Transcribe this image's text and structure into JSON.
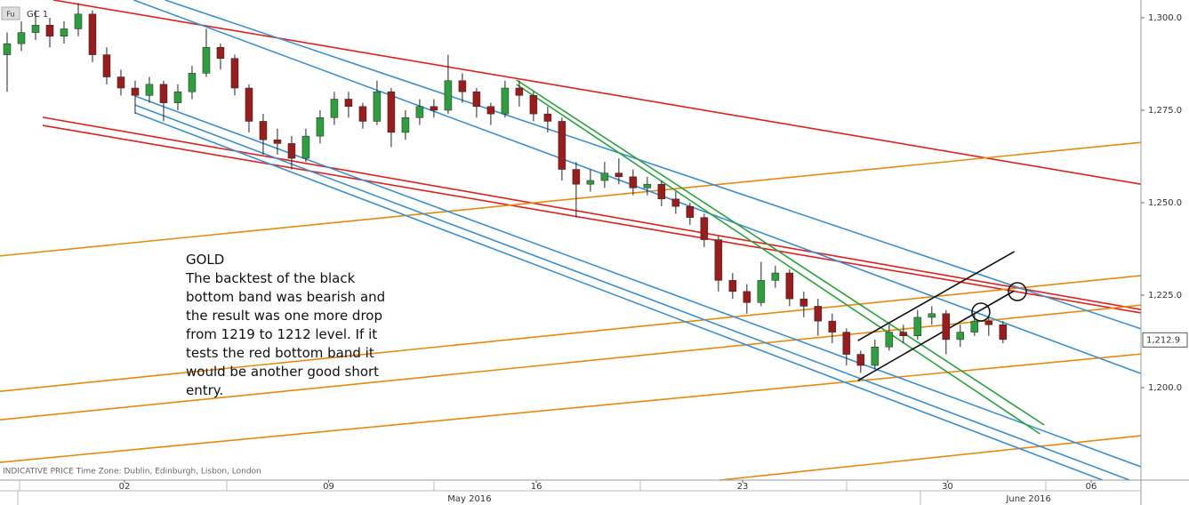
{
  "chart_data": {
    "type": "candlestick",
    "symbol": "GC 1",
    "symbol_icon": "Fu",
    "footer": "INDICATIVE PRICE   Time Zone: Dublin, Edinburgh, Lisbon, London",
    "months": [
      {
        "value": 33,
        "label": "May 2016"
      },
      {
        "value": 72.3,
        "label": "June 2016"
      }
    ],
    "last_price": {
      "value": 1212.9,
      "label": "1,212.9"
    },
    "up_color": "#2e9e3e",
    "down_color": "#9b1c1c",
    "ohlc": [
      [
        1290,
        1296,
        1280,
        1293
      ],
      [
        1293,
        1299,
        1291,
        1296
      ],
      [
        1296,
        1302,
        1294,
        1298
      ],
      [
        1298,
        1300,
        1292,
        1295
      ],
      [
        1295,
        1299,
        1293,
        1297
      ],
      [
        1297,
        1304,
        1295,
        1301
      ],
      [
        1301,
        1302,
        1288,
        1290
      ],
      [
        1290,
        1292,
        1282,
        1284
      ],
      [
        1284,
        1286,
        1279,
        1281
      ],
      [
        1281,
        1283,
        1274,
        1279
      ],
      [
        1279,
        1284,
        1277,
        1282
      ],
      [
        1282,
        1283,
        1272,
        1277
      ],
      [
        1277,
        1282,
        1275,
        1280
      ],
      [
        1280,
        1287,
        1278,
        1285
      ],
      [
        1285,
        1297,
        1284,
        1292
      ],
      [
        1292,
        1293,
        1286,
        1289
      ],
      [
        1289,
        1290,
        1279,
        1281
      ],
      [
        1281,
        1282,
        1269,
        1272
      ],
      [
        1272,
        1274,
        1263,
        1267
      ],
      [
        1267,
        1270,
        1263,
        1266
      ],
      [
        1266,
        1268,
        1259,
        1262
      ],
      [
        1262,
        1270,
        1261,
        1268
      ],
      [
        1268,
        1275,
        1266,
        1273
      ],
      [
        1273,
        1280,
        1271,
        1278
      ],
      [
        1278,
        1280,
        1273,
        1276
      ],
      [
        1276,
        1277,
        1270,
        1272
      ],
      [
        1272,
        1283,
        1271,
        1280
      ],
      [
        1280,
        1281,
        1265,
        1269
      ],
      [
        1269,
        1275,
        1267,
        1273
      ],
      [
        1273,
        1278,
        1271,
        1276
      ],
      [
        1276,
        1278,
        1273,
        1275
      ],
      [
        1275,
        1290,
        1274,
        1283
      ],
      [
        1283,
        1285,
        1277,
        1280
      ],
      [
        1280,
        1281,
        1273,
        1276
      ],
      [
        1276,
        1277,
        1271,
        1274
      ],
      [
        1274,
        1283,
        1273,
        1281
      ],
      [
        1281,
        1283,
        1276,
        1279
      ],
      [
        1279,
        1280,
        1272,
        1274
      ],
      [
        1274,
        1276,
        1269,
        1272
      ],
      [
        1272,
        1273,
        1256,
        1259
      ],
      [
        1259,
        1261,
        1246,
        1255
      ],
      [
        1255,
        1259,
        1253,
        1256
      ],
      [
        1256,
        1261,
        1254,
        1258
      ],
      [
        1258,
        1262,
        1255,
        1257
      ],
      [
        1257,
        1259,
        1252,
        1254
      ],
      [
        1254,
        1257,
        1252,
        1255
      ],
      [
        1255,
        1256,
        1249,
        1251
      ],
      [
        1251,
        1253,
        1247,
        1249
      ],
      [
        1249,
        1250,
        1244,
        1246
      ],
      [
        1246,
        1247,
        1238,
        1240
      ],
      [
        1240,
        1241,
        1226,
        1229
      ],
      [
        1229,
        1231,
        1224,
        1226
      ],
      [
        1226,
        1228,
        1220,
        1223
      ],
      [
        1223,
        1234,
        1222,
        1229
      ],
      [
        1229,
        1233,
        1227,
        1231
      ],
      [
        1231,
        1232,
        1222,
        1224
      ],
      [
        1224,
        1226,
        1219,
        1222
      ],
      [
        1222,
        1224,
        1214,
        1218
      ],
      [
        1218,
        1220,
        1212,
        1215
      ],
      [
        1215,
        1216,
        1206,
        1209
      ],
      [
        1209,
        1210,
        1204,
        1206
      ],
      [
        1206,
        1213,
        1205,
        1211
      ],
      [
        1211,
        1217,
        1210,
        1215
      ],
      [
        1215,
        1217,
        1212,
        1214
      ],
      [
        1214,
        1221,
        1213,
        1219
      ],
      [
        1219,
        1222,
        1217,
        1220
      ],
      [
        1220,
        1221,
        1209,
        1213
      ],
      [
        1213,
        1217,
        1211,
        1215
      ],
      [
        1215,
        1220,
        1214,
        1218
      ],
      [
        1218,
        1219,
        1214,
        1217
      ],
      [
        1217,
        1218,
        1212,
        1213
      ]
    ],
    "xlim": [
      0,
      80.2
    ],
    "ylim": [
      1175,
      1304.8
    ],
    "xticks": [
      {
        "value": 8.75,
        "label": "02"
      },
      {
        "value": 23.1,
        "label": "09"
      },
      {
        "value": 37.7,
        "label": "16"
      },
      {
        "value": 52.2,
        "label": "23"
      },
      {
        "value": 66.6,
        "label": "30"
      },
      {
        "value": 76.7,
        "label": "06"
      }
    ],
    "yticks": [
      {
        "value": 1200,
        "label": "1,200.0"
      },
      {
        "value": 1225,
        "label": "1,225.0"
      },
      {
        "value": 1250,
        "label": "1,250.0"
      },
      {
        "value": 1275,
        "label": "1,275.0"
      },
      {
        "value": 1300,
        "label": "1,300.0"
      }
    ],
    "trendlines": [
      {
        "color": "#e0201b",
        "points": [
          3.75,
          1304.8,
          80.2,
          1255.0
        ]
      },
      {
        "color": "#e0201b",
        "points": [
          3,
          1273.1,
          80.2,
          1221.1
        ]
      },
      {
        "color": "#e0201b",
        "points": [
          3,
          1270.9,
          80.2,
          1220.2
        ]
      },
      {
        "color": "#e8890c",
        "points": [
          0,
          1235.6,
          80.2,
          1266.3
        ]
      },
      {
        "color": "#e8890c",
        "points": [
          0,
          1199.0,
          80.2,
          1230.3
        ]
      },
      {
        "color": "#e8890c",
        "points": [
          0,
          1191.3,
          80.2,
          1222.3
        ]
      },
      {
        "color": "#e8890c",
        "points": [
          0,
          1179.8,
          80.2,
          1209.1
        ]
      },
      {
        "color": "#e8890c",
        "points": [
          50.6,
          1175,
          80.2,
          1187.0
        ]
      },
      {
        "color": "#3b8fd0",
        "points": [
          9.4,
          1304.8,
          80.2,
          1203.8
        ]
      },
      {
        "color": "#3b8fd0",
        "points": [
          11.6,
          1304.8,
          80.2,
          1215.9
        ]
      },
      {
        "color": "#3b8fd0",
        "points": [
          9.5,
          1278.8,
          80.2,
          1178.6
        ]
      },
      {
        "color": "#3b8fd0",
        "points": [
          9.5,
          1276.4,
          79.4,
          1175
        ]
      },
      {
        "color": "#3b8fd0",
        "points": [
          9.5,
          1274.3,
          77.5,
          1175
        ]
      },
      {
        "color": "#2aa33a",
        "points": [
          36.3,
          1283.2,
          73.4,
          1189.9
        ]
      },
      {
        "color": "#2aa33a",
        "points": [
          36.3,
          1282.0,
          73.1,
          1187.5
        ]
      },
      {
        "color": "#111111",
        "points": [
          60.3,
          1212.7,
          71.3,
          1236.8
        ]
      },
      {
        "color": "#111111",
        "points": [
          60.3,
          1201.9,
          71.3,
          1226.2
        ]
      }
    ],
    "annotation": [
      "GOLD",
      "The backtest of the black",
      "bottom band was bearish and",
      "the result was one more drop",
      "from 1219 to 1212 level. If it",
      "tests the red bottom band it",
      "would be another good short",
      "entry."
    ]
  }
}
